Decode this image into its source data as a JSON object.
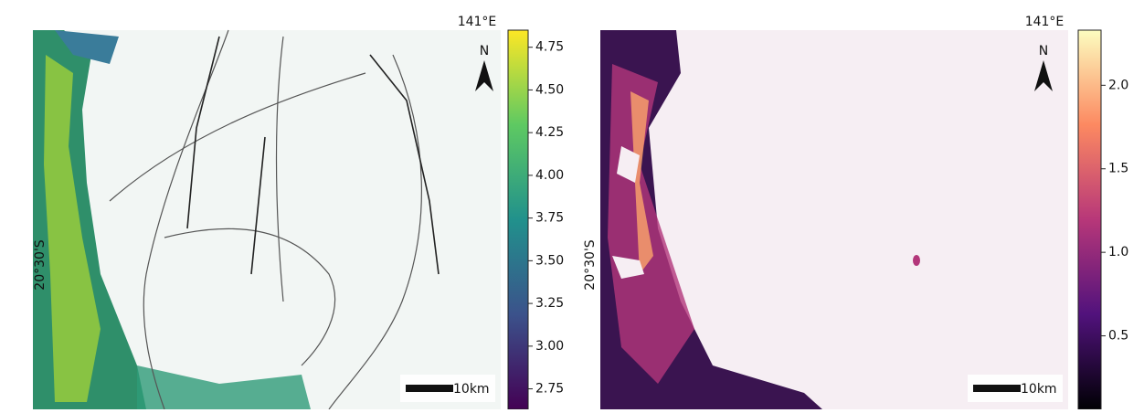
{
  "panels": [
    {
      "lon_label": "141°E",
      "lat_label": "20°30'S",
      "north": "N",
      "scale_bar": "10km",
      "colorbar": {
        "colormap": "viridis",
        "range": [
          2.63,
          4.85
        ],
        "ticks": [
          {
            "value": 2.75,
            "label": "2.75"
          },
          {
            "value": 3,
            "label": "3.00"
          },
          {
            "value": 3.25,
            "label": "3.25"
          },
          {
            "value": 3.5,
            "label": "3.50"
          },
          {
            "value": 3.75,
            "label": "3.75"
          },
          {
            "value": 4,
            "label": "4.00"
          },
          {
            "value": 4.25,
            "label": "4.25"
          },
          {
            "value": 4.5,
            "label": "4.50"
          },
          {
            "value": 4.75,
            "label": "4.75"
          }
        ]
      }
    },
    {
      "lon_label": "141°E",
      "lat_label": "20°30'S",
      "north": "N",
      "scale_bar": "10km",
      "colorbar": {
        "colormap": "magma",
        "range": [
          0.06,
          2.33
        ],
        "ticks": [
          0.5,
          {
            "value": 1,
            "label": "1.0"
          },
          1.5,
          {
            "value": 2,
            "label": "2.0"
          }
        ]
      }
    }
  ]
}
